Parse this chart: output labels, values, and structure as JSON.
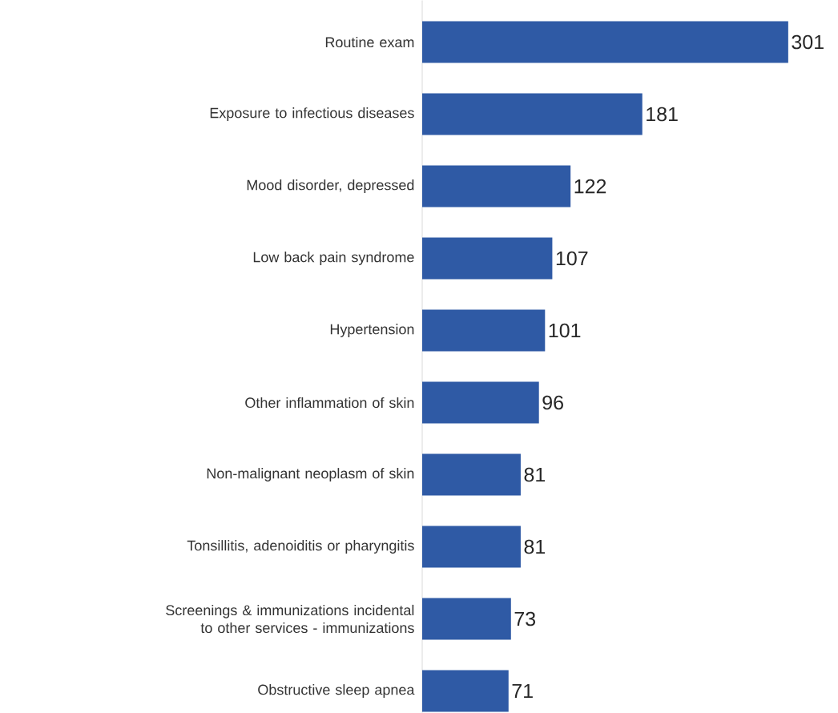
{
  "chart_data": {
    "type": "bar",
    "orientation": "horizontal",
    "categories": [
      "Routine exam",
      "Exposure to infectious diseases",
      "Mood disorder, depressed",
      "Low back pain syndrome",
      "Hypertension",
      "Other inflammation of skin",
      "Non-malignant neoplasm of skin",
      "Tonsillitis, adenoiditis or pharyngitis",
      "Screenings & immunizations incidental to other services - immunizations",
      "Obstructive sleep apnea"
    ],
    "values": [
      301,
      181,
      122,
      107,
      101,
      96,
      81,
      81,
      73,
      71
    ],
    "color": "#2f5aa5",
    "data_labels": true
  }
}
